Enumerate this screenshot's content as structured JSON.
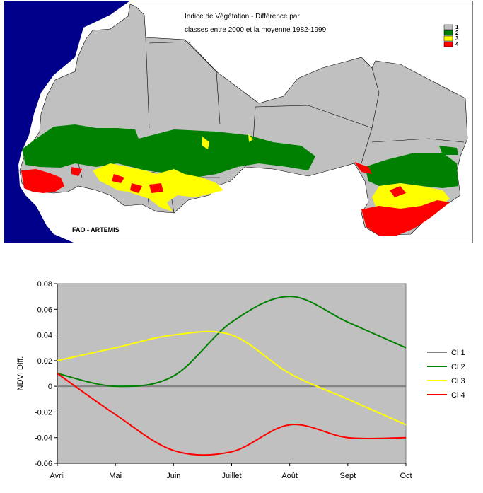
{
  "map": {
    "title_line1": "Indice de Végétation -  Différence par",
    "title_line2": "classes entre 2000 et la moyenne 1982-1999.",
    "credit": "FAO - ARTEMIS",
    "legend": [
      {
        "label": "1",
        "color": "#c0c0c0"
      },
      {
        "label": "2",
        "color": "#008000"
      },
      {
        "label": "3",
        "color": "#ffff00"
      },
      {
        "label": "4",
        "color": "#ff0000"
      }
    ],
    "colors": {
      "ocean": "#00008b",
      "land": "#c0c0c0",
      "outside": "#ffffff"
    }
  },
  "chart_data": {
    "type": "line",
    "title": "",
    "xlabel": "",
    "ylabel": "NDVI Diff.",
    "categories": [
      "Avril",
      "Mai",
      "Juin",
      "Juillet",
      "Août",
      "Sept",
      "Oct"
    ],
    "ylim": [
      -0.06,
      0.08
    ],
    "yticks": [
      0.08,
      0.06,
      0.04,
      0.02,
      0,
      -0.02,
      -0.04,
      -0.06
    ],
    "ytick_labels": [
      "0.08",
      "0.06",
      "0.04",
      "0.02",
      "0",
      "-0.02",
      "-0.04",
      "-0.06"
    ],
    "grid": false,
    "legend_position": "right",
    "plot_background": "#c0c0c0",
    "series": [
      {
        "name": "Cl 1",
        "color": "#808080",
        "values": [
          0,
          0,
          0,
          0,
          0,
          0,
          0
        ]
      },
      {
        "name": "Cl 2",
        "color": "#008000",
        "values": [
          0.01,
          0.0,
          0.008,
          0.05,
          0.07,
          0.05,
          0.03
        ]
      },
      {
        "name": "Cl 3",
        "color": "#ffff00",
        "values": [
          0.02,
          0.03,
          0.04,
          0.04,
          0.01,
          -0.01,
          -0.03
        ]
      },
      {
        "name": "Cl 4",
        "color": "#ff0000",
        "values": [
          0.01,
          -0.022,
          -0.05,
          -0.051,
          -0.03,
          -0.04,
          -0.04
        ]
      }
    ]
  }
}
